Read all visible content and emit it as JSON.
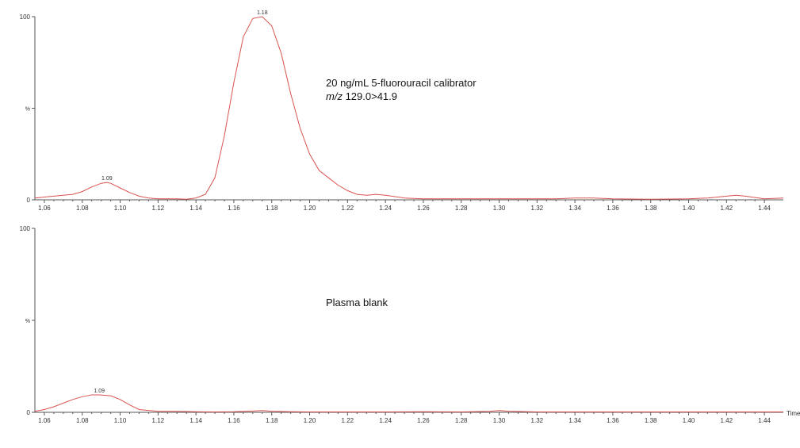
{
  "chart_data": [
    {
      "type": "line",
      "annotation_lines": [
        "20 ng/mL 5-fluorouracil calibrator",
        "m/z",
        " 129.0>41.9"
      ],
      "xlabel": "",
      "ylabel": "%",
      "xlim": [
        1.055,
        1.45
      ],
      "ylim": [
        0,
        100
      ],
      "x_ticks": [
        "1.06",
        "1.08",
        "1.10",
        "1.12",
        "1.14",
        "1.16",
        "1.18",
        "1.20",
        "1.22",
        "1.24",
        "1.26",
        "1.28",
        "1.30",
        "1.32",
        "1.34",
        "1.36",
        "1.38",
        "1.40",
        "1.42",
        "1.44"
      ],
      "y_ticks": [
        "0",
        "%",
        "100"
      ],
      "line_color": "#d9534f",
      "peak_labels": [
        {
          "text": "1.18",
          "x": 1.175,
          "y": 100
        },
        {
          "text": "1.09",
          "x": 1.093,
          "y": 9.5
        }
      ],
      "series": [
        {
          "x": [
            1.055,
            1.06,
            1.065,
            1.07,
            1.075,
            1.08,
            1.085,
            1.09,
            1.093,
            1.095,
            1.1,
            1.105,
            1.11,
            1.115,
            1.12,
            1.125,
            1.13,
            1.135,
            1.14,
            1.145,
            1.15,
            1.155,
            1.16,
            1.165,
            1.17,
            1.175,
            1.18,
            1.185,
            1.19,
            1.195,
            1.2,
            1.205,
            1.21,
            1.215,
            1.22,
            1.225,
            1.23,
            1.235,
            1.24,
            1.25,
            1.26,
            1.28,
            1.3,
            1.32,
            1.33,
            1.34,
            1.345,
            1.35,
            1.36,
            1.38,
            1.4,
            1.41,
            1.42,
            1.425,
            1.43,
            1.44,
            1.45
          ],
          "y": [
            1,
            1.5,
            2,
            2.5,
            3,
            4.5,
            7,
            9,
            9.5,
            9,
            6.5,
            4,
            2,
            1,
            0.5,
            0.5,
            0.5,
            0.3,
            1,
            3,
            12,
            35,
            64,
            89,
            99,
            100,
            95,
            80,
            58,
            39,
            25,
            16,
            12,
            8,
            5,
            3,
            2.5,
            3,
            2.5,
            1,
            0.5,
            0.5,
            0.5,
            0.5,
            0.5,
            1,
            1,
            1,
            0.5,
            0.3,
            0.5,
            1,
            2,
            2.5,
            2,
            0.5,
            1
          ]
        }
      ]
    },
    {
      "type": "line",
      "annotation_lines": [
        "Plasma blank"
      ],
      "xlabel": "Time",
      "ylabel": "%",
      "xlim": [
        1.055,
        1.45
      ],
      "ylim": [
        0,
        100
      ],
      "x_ticks": [
        "1.06",
        "1.08",
        "1.10",
        "1.12",
        "1.14",
        "1.16",
        "1.18",
        "1.20",
        "1.22",
        "1.24",
        "1.26",
        "1.28",
        "1.30",
        "1.32",
        "1.34",
        "1.36",
        "1.38",
        "1.40",
        "1.42",
        "1.44"
      ],
      "y_ticks": [
        "0",
        "%",
        "100"
      ],
      "line_color": "#d9534f",
      "peak_labels": [
        {
          "text": "1.09",
          "x": 1.089,
          "y": 9.5
        }
      ],
      "series": [
        {
          "x": [
            1.055,
            1.06,
            1.065,
            1.07,
            1.075,
            1.08,
            1.085,
            1.089,
            1.095,
            1.1,
            1.105,
            1.11,
            1.12,
            1.13,
            1.14,
            1.15,
            1.16,
            1.17,
            1.175,
            1.18,
            1.19,
            1.2,
            1.22,
            1.24,
            1.26,
            1.28,
            1.295,
            1.3,
            1.305,
            1.32,
            1.34,
            1.36,
            1.38,
            1.4,
            1.42,
            1.44,
            1.45
          ],
          "y": [
            0.5,
            1.5,
            3,
            5,
            7,
            8.5,
            9.5,
            9.5,
            9,
            7,
            4,
            1.5,
            0.5,
            0.5,
            0.3,
            0.2,
            0.3,
            0.7,
            1,
            0.6,
            0.3,
            0.2,
            0.2,
            0.2,
            0.3,
            0.2,
            0.5,
            1,
            0.6,
            0.2,
            0.2,
            0.2,
            0.2,
            0.2,
            0.2,
            0.2,
            0.2
          ]
        }
      ]
    }
  ]
}
